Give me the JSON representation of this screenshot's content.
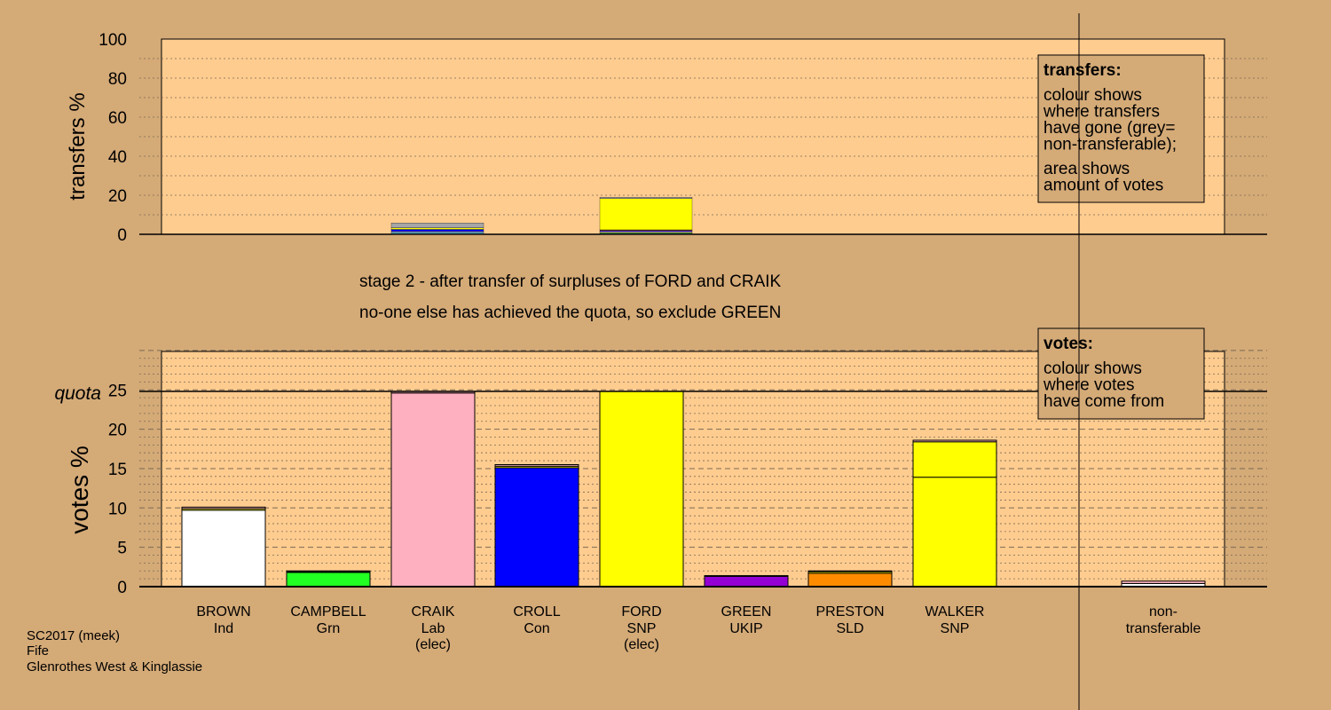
{
  "colors": {
    "background": "#D4AA77",
    "panel": "#FFCC8F",
    "grid": "#7a6a55"
  },
  "stage_text": {
    "line1": "stage 2 - after transfer of surpluses of FORD and CRAIK",
    "line2": "no-one else has achieved the quota, so exclude GREEN"
  },
  "footer": {
    "line1": "SC2017 (meek)",
    "line2": "Fife",
    "line3": "Glenrothes West & Kinglassie"
  },
  "chart_data": [
    {
      "type": "bar",
      "name": "transfers",
      "ylabel": "transfers %",
      "ylim": [
        0,
        100
      ],
      "yticks": [
        0,
        20,
        40,
        60,
        80,
        100
      ],
      "grid": true,
      "legend": {
        "position": "top-right",
        "title": "transfers:",
        "lines1": [
          "colour shows",
          "where transfers",
          "have gone (grey=",
          "non-transferable);"
        ],
        "lines2": [
          "area shows",
          "amount of votes"
        ]
      },
      "bars": [
        {
          "candidate": "CRAIK",
          "segments": [
            {
              "value": 0.6,
              "color": "#FFFFFF"
            },
            {
              "value": 0.4,
              "color": "#00BFFF"
            },
            {
              "value": 0.5,
              "color": "#FFFFFF"
            },
            {
              "value": 1.0,
              "color": "#0000FF"
            },
            {
              "value": 0.8,
              "color": "#FFFF00"
            },
            {
              "value": 2.5,
              "color": "#A6A6A6"
            }
          ]
        },
        {
          "candidate": "FORD",
          "segments": [
            {
              "value": 0.5,
              "color": "#FFFFFF"
            },
            {
              "value": 0.4,
              "color": "#00FF00"
            },
            {
              "value": 0.6,
              "color": "#FFB6C1"
            },
            {
              "value": 0.5,
              "color": "#0000FF"
            },
            {
              "value": 0.3,
              "color": "#FF8C00"
            },
            {
              "value": 16.0,
              "color": "#FFFF00"
            },
            {
              "value": 0.7,
              "color": "#A6A6A6"
            }
          ]
        }
      ]
    },
    {
      "type": "bar",
      "name": "votes",
      "ylabel": "votes %",
      "ylim": [
        0,
        30
      ],
      "yticks": [
        0,
        5,
        10,
        15,
        20,
        25
      ],
      "quota": 24.8,
      "quota_label": "quota",
      "grid": true,
      "legend": {
        "position": "top-right",
        "title": "votes:",
        "lines1": [
          "colour shows",
          "where votes",
          "have come from"
        ]
      },
      "categories": [
        {
          "name": "BROWN",
          "party": "Ind",
          "elected": ""
        },
        {
          "name": "CAMPBELL",
          "party": "Grn",
          "elected": ""
        },
        {
          "name": "CRAIK",
          "party": "Lab",
          "elected": "(elec)"
        },
        {
          "name": "CROLL",
          "party": "Con",
          "elected": ""
        },
        {
          "name": "FORD",
          "party": "SNP",
          "elected": "(elec)"
        },
        {
          "name": "GREEN",
          "party": "UKIP",
          "elected": ""
        },
        {
          "name": "PRESTON",
          "party": "SLD",
          "elected": ""
        },
        {
          "name": "WALKER",
          "party": "SNP",
          "elected": ""
        }
      ],
      "nontransferable_label": [
        "non-",
        "transferable"
      ],
      "bars": [
        {
          "candidate": "BROWN",
          "segments": [
            {
              "value": 9.7,
              "color": "#FFFFFF"
            },
            {
              "value": 0.2,
              "color": "#FFFF00"
            },
            {
              "value": 0.2,
              "color": "#FFB6C1"
            }
          ]
        },
        {
          "candidate": "CAMPBELL",
          "segments": [
            {
              "value": 1.8,
              "color": "#22FF22"
            },
            {
              "value": 0.1,
              "color": "#FFFF00"
            },
            {
              "value": 0.1,
              "color": "#FFB6C1"
            }
          ]
        },
        {
          "candidate": "CRAIK",
          "segments": [
            {
              "value": 24.6,
              "color": "#FFB0C0"
            },
            {
              "value": 0.2,
              "color": "#FFB0C0"
            }
          ]
        },
        {
          "candidate": "CROLL",
          "segments": [
            {
              "value": 15.1,
              "color": "#0000FF"
            },
            {
              "value": 0.2,
              "color": "#FFFF00"
            },
            {
              "value": 0.2,
              "color": "#FFB6C1"
            }
          ]
        },
        {
          "candidate": "FORD",
          "segments": [
            {
              "value": 24.8,
              "color": "#FFFF00"
            }
          ]
        },
        {
          "candidate": "GREEN",
          "segments": [
            {
              "value": 1.3,
              "color": "#9400D3"
            },
            {
              "value": 0.1,
              "color": "#FFFF00"
            }
          ]
        },
        {
          "candidate": "PRESTON",
          "segments": [
            {
              "value": 1.7,
              "color": "#FF8C00"
            },
            {
              "value": 0.2,
              "color": "#FFFF00"
            },
            {
              "value": 0.1,
              "color": "#FFB6C1"
            }
          ]
        },
        {
          "candidate": "WALKER",
          "segments": [
            {
              "value": 13.9,
              "color": "#FFFF00"
            },
            {
              "value": 4.5,
              "color": "#FFFF00"
            },
            {
              "value": 0.2,
              "color": "#FFB6C1"
            }
          ]
        }
      ],
      "nontransferable": {
        "segments": [
          {
            "value": 0.4,
            "color": "#FFFFFF"
          },
          {
            "value": 0.3,
            "color": "#FFB6C1"
          }
        ]
      }
    }
  ]
}
